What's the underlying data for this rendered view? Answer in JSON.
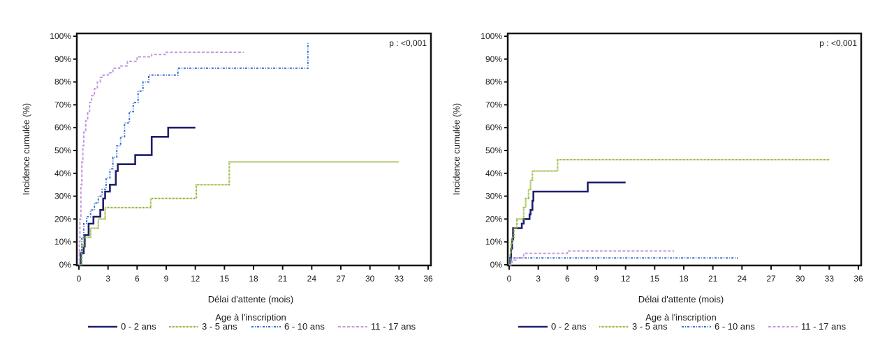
{
  "chart_data": [
    {
      "type": "line",
      "step": true,
      "title": "",
      "xlabel": "Délai d'attente (mois)",
      "ylabel": "Incidence cumulée (%)",
      "xlim": [
        0,
        36
      ],
      "ylim": [
        0,
        100
      ],
      "xticks": [
        "0",
        "3",
        "6",
        "9",
        "12",
        "15",
        "18",
        "21",
        "24",
        "27",
        "30",
        "33",
        "36"
      ],
      "yticks": [
        "0%",
        "10%",
        "20%",
        "30%",
        "40%",
        "50%",
        "60%",
        "70%",
        "80%",
        "90%",
        "100%"
      ],
      "annotation": "p : <0,001",
      "grid": false,
      "legend_title": "Age à l'inscription",
      "legend_position": "bottom",
      "series": [
        {
          "name": "0 - 2 ans",
          "color": "#1f1f6e",
          "style": "solid",
          "x": [
            0,
            0.2,
            0.5,
            0.6,
            1.0,
            1.5,
            2.2,
            2.5,
            2.7,
            3.2,
            3.8,
            4.0,
            5.8,
            7.5,
            9.2,
            12.0
          ],
          "y": [
            0,
            5,
            8,
            13,
            18,
            21,
            24,
            29,
            32,
            35,
            41,
            44,
            48,
            56,
            60,
            60
          ]
        },
        {
          "name": "3 - 5 ans",
          "color": "#8db42c",
          "style": "dotted",
          "x": [
            0,
            0.3,
            0.5,
            1.2,
            2.0,
            2.7,
            7.4,
            12.1,
            15.5,
            33.0
          ],
          "y": [
            0,
            8,
            12,
            16,
            20,
            25,
            29,
            35,
            45,
            45
          ]
        },
        {
          "name": "6 - 10 ans",
          "color": "#3a6fd0",
          "style": "dash-dot",
          "x": [
            0,
            0.1,
            0.3,
            0.5,
            0.8,
            1.2,
            1.6,
            2.0,
            2.4,
            2.8,
            3.2,
            3.5,
            3.9,
            4.3,
            4.7,
            5.2,
            5.6,
            6.1,
            6.6,
            7.2,
            10.2,
            23.6,
            23.6
          ],
          "y": [
            0,
            6,
            12,
            18,
            21,
            24,
            27,
            30,
            33,
            38,
            42,
            47,
            52,
            56,
            62,
            67,
            71,
            76,
            80,
            83,
            86,
            86,
            97
          ]
        },
        {
          "name": "11 - 17 ans",
          "color": "#c39be0",
          "style": "dashed",
          "x": [
            0,
            0.05,
            0.1,
            0.2,
            0.3,
            0.4,
            0.5,
            0.7,
            0.9,
            1.1,
            1.3,
            1.6,
            1.9,
            2.2,
            2.5,
            3.0,
            3.5,
            4.2,
            5.0,
            6.0,
            7.5,
            9.0,
            17.0
          ],
          "y": [
            0,
            10,
            20,
            35,
            45,
            52,
            58,
            63,
            67,
            71,
            74,
            77,
            80,
            82,
            83,
            84,
            86,
            87,
            89,
            91,
            92,
            93,
            93
          ]
        }
      ]
    },
    {
      "type": "line",
      "step": true,
      "title": "",
      "xlabel": "Délai d'attente (mois)",
      "ylabel": "Incidence cumulée (%)",
      "xlim": [
        0,
        36
      ],
      "ylim": [
        0,
        100
      ],
      "xticks": [
        "0",
        "3",
        "6",
        "9",
        "12",
        "15",
        "18",
        "21",
        "24",
        "27",
        "30",
        "33",
        "36"
      ],
      "yticks": [
        "0%",
        "10%",
        "20%",
        "30%",
        "40%",
        "50%",
        "60%",
        "70%",
        "80%",
        "90%",
        "100%"
      ],
      "annotation": "p : <0,001",
      "grid": false,
      "legend_title": "Age à l'inscription",
      "legend_position": "bottom",
      "series": [
        {
          "name": "0 - 2 ans",
          "color": "#1f1f6e",
          "style": "solid",
          "x": [
            0,
            0.1,
            0.2,
            0.3,
            0.4,
            1.3,
            1.5,
            2.1,
            2.2,
            2.4,
            2.5,
            8.1,
            12.0
          ],
          "y": [
            0,
            3,
            7,
            11,
            16,
            18,
            20,
            22,
            24,
            28,
            32,
            36,
            36
          ]
        },
        {
          "name": "3 - 5 ans",
          "color": "#8db42c",
          "style": "dotted",
          "x": [
            0,
            0.1,
            0.2,
            0.3,
            0.5,
            0.8,
            1.5,
            1.7,
            2.0,
            2.2,
            2.4,
            2.5,
            5.0,
            33.0
          ],
          "y": [
            0,
            5,
            9,
            12,
            16,
            20,
            25,
            29,
            33,
            37,
            41,
            41,
            46,
            46
          ]
        },
        {
          "name": "6 - 10 ans",
          "color": "#3a6fd0",
          "style": "dash-dot",
          "x": [
            0,
            0.2,
            23.6
          ],
          "y": [
            0,
            3,
            3
          ]
        },
        {
          "name": "11 - 17 ans",
          "color": "#c39be0",
          "style": "dashed",
          "x": [
            0,
            0.3,
            0.8,
            1.5,
            6.0,
            17.0
          ],
          "y": [
            0,
            2,
            3,
            5,
            6,
            6
          ]
        }
      ]
    }
  ]
}
